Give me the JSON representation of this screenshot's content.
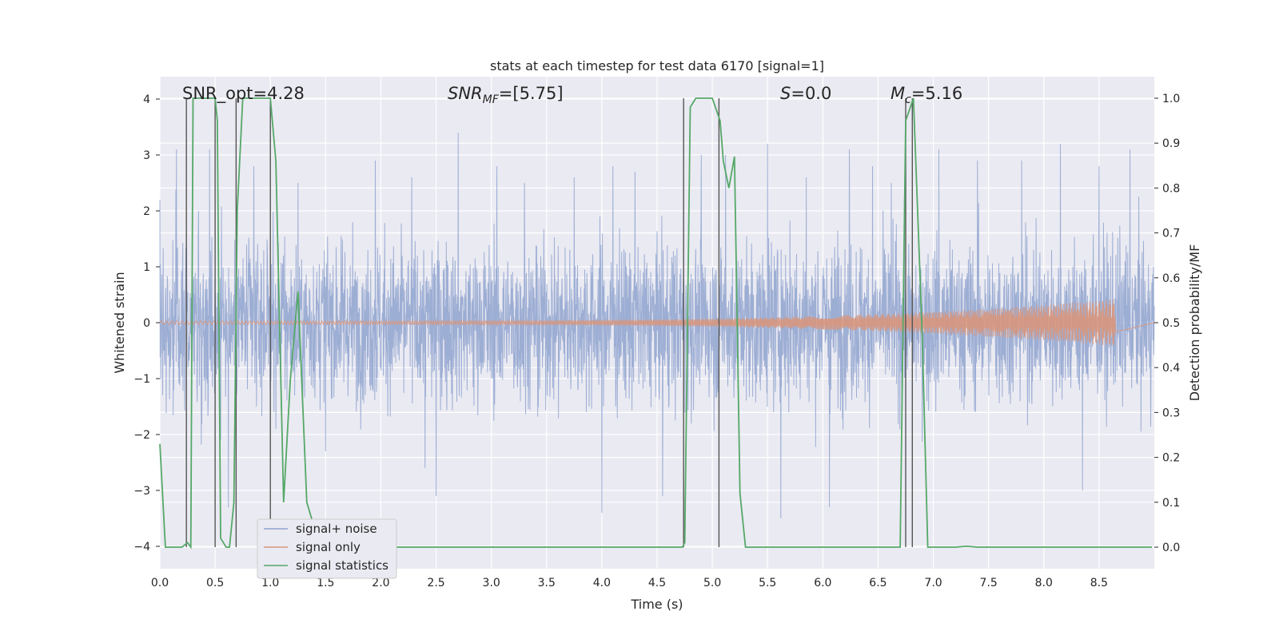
{
  "chart_data": {
    "type": "line",
    "title": "stats at each timestep for test data 6170 [signal=1]",
    "xlabel": "Time (s)",
    "ylabel": "Whitened strain",
    "y2label": "Detection probability/MF",
    "xlim": [
      0.0,
      9.0
    ],
    "ylim": [
      -4.4,
      4.4
    ],
    "y2lim": [
      -0.048,
      1.048
    ],
    "x_ticks": [
      "0.0",
      "0.5",
      "1.0",
      "1.5",
      "2.0",
      "2.5",
      "3.0",
      "3.5",
      "4.0",
      "4.5",
      "5.0",
      "5.5",
      "6.0",
      "6.5",
      "7.0",
      "7.5",
      "8.0",
      "8.5"
    ],
    "y_ticks": [
      "4",
      "3",
      "2",
      "1",
      "0",
      "−1",
      "−2",
      "−3",
      "−4"
    ],
    "y2_ticks": [
      "1.0",
      "0.9",
      "0.8",
      "0.7",
      "0.6",
      "0.5",
      "0.4",
      "0.3",
      "0.2",
      "0.1",
      "0.0"
    ],
    "grid": true,
    "legend_position": "lower-left",
    "annotations": {
      "snr_opt": "SNR_opt=4.28",
      "snr_mf_main": "SNR",
      "snr_mf_sub": "MF",
      "snr_mf_rest": "=[5.75]",
      "s_main": "S",
      "s_rest": "=0.0",
      "mc_main": "M",
      "mc_sub": "c",
      "mc_rest": "=5.16"
    },
    "series": [
      {
        "name": "signal+ noise",
        "color": "#8FA3CF",
        "axis": "left",
        "description_free": true,
        "sample_rate": 400,
        "envelope_typical": 1.6,
        "peaks": [
          [
            0.0,
            2.2
          ],
          [
            0.15,
            3.1
          ],
          [
            0.35,
            2.0
          ],
          [
            0.45,
            3.1
          ],
          [
            0.62,
            -3.3
          ],
          [
            0.85,
            2.8
          ],
          [
            1.05,
            -1.9
          ],
          [
            1.25,
            2.5
          ],
          [
            1.5,
            -2.3
          ],
          [
            1.95,
            2.9
          ],
          [
            2.28,
            2.6
          ],
          [
            2.4,
            -2.6
          ],
          [
            2.5,
            -3.1
          ],
          [
            2.7,
            3.4
          ],
          [
            3.05,
            2.8
          ],
          [
            3.3,
            2.5
          ],
          [
            3.75,
            2.6
          ],
          [
            4.0,
            -3.4
          ],
          [
            4.1,
            2.8
          ],
          [
            4.3,
            2.7
          ],
          [
            4.55,
            -3.1
          ],
          [
            4.9,
            3.0
          ],
          [
            5.12,
            3.0
          ],
          [
            5.5,
            3.2
          ],
          [
            5.62,
            -3.5
          ],
          [
            5.85,
            2.6
          ],
          [
            6.06,
            -3.3
          ],
          [
            6.24,
            3.1
          ],
          [
            6.45,
            2.8
          ],
          [
            6.62,
            2.5
          ],
          [
            7.05,
            3.1
          ],
          [
            7.4,
            2.9
          ],
          [
            7.8,
            2.9
          ],
          [
            8.15,
            3.2
          ],
          [
            8.35,
            -3.0
          ],
          [
            8.5,
            2.8
          ],
          [
            8.78,
            3.1
          ]
        ]
      },
      {
        "name": "signal only",
        "color": "#D8967C",
        "axis": "left",
        "chirp_start": 0.0,
        "chirp_end": 8.65,
        "amp_start": 0.03,
        "amp_end": 0.42
      },
      {
        "name": "signal statistics",
        "color": "#55A868",
        "axis": "right",
        "x": [
          0.0,
          0.05,
          0.1,
          0.2,
          0.25,
          0.28,
          0.3,
          0.5,
          0.52,
          0.55,
          0.6,
          0.63,
          0.67,
          0.7,
          0.75,
          1.0,
          1.05,
          1.12,
          1.18,
          1.25,
          1.33,
          1.45,
          1.5,
          2.0,
          3.0,
          4.0,
          4.5,
          4.73,
          4.75,
          4.8,
          4.85,
          5.0,
          5.07,
          5.1,
          5.15,
          5.2,
          5.25,
          5.3,
          5.5,
          6.0,
          6.5,
          6.7,
          6.75,
          6.82,
          6.9,
          6.95,
          7.0,
          7.2,
          7.3,
          7.4,
          7.5,
          8.0,
          8.5,
          8.98
        ],
        "y": [
          0.23,
          0.0,
          0.0,
          0.0,
          0.01,
          0.0,
          1.0,
          1.0,
          0.95,
          0.02,
          0.0,
          0.0,
          0.1,
          0.75,
          1.0,
          1.0,
          0.86,
          0.1,
          0.37,
          0.57,
          0.1,
          0.0,
          0.0,
          0.0,
          0.0,
          0.0,
          0.0,
          0.0,
          0.01,
          0.98,
          1.0,
          1.0,
          0.95,
          0.86,
          0.8,
          0.87,
          0.12,
          0.0,
          0.0,
          0.0,
          0.0,
          0.0,
          0.95,
          1.0,
          0.47,
          0.0,
          0.0,
          0.0,
          0.002,
          0.0,
          0.0,
          0.0,
          0.0,
          0.0
        ]
      }
    ],
    "vertical_lines_x": [
      0.24,
      0.5,
      0.69,
      1.0,
      4.74,
      5.06,
      6.75,
      6.81
    ],
    "vertical_lines_color": "#555555"
  }
}
